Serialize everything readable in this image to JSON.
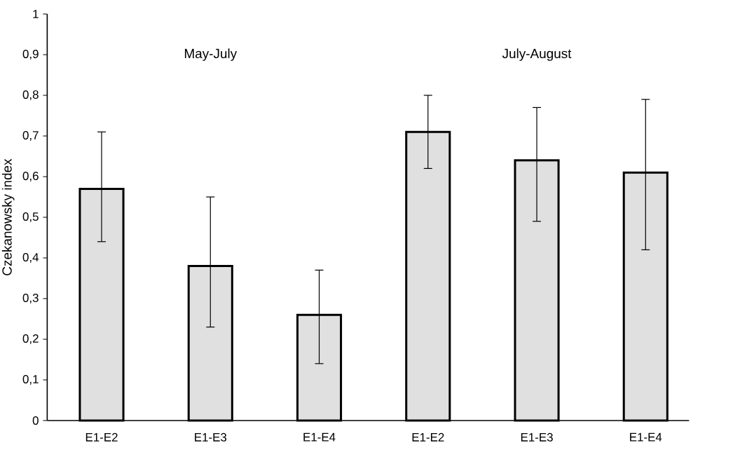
{
  "chart_data": {
    "type": "bar",
    "ylabel": "Czekanowsky index",
    "categories": [
      "E1-E2",
      "E1-E3",
      "E1-E4",
      "E1-E2",
      "E1-E3",
      "E1-E4"
    ],
    "values": [
      0.57,
      0.38,
      0.26,
      0.71,
      0.64,
      0.61
    ],
    "errors": [
      [
        0.44,
        0.71
      ],
      [
        0.23,
        0.55
      ],
      [
        0.14,
        0.37
      ],
      [
        0.62,
        0.8
      ],
      [
        0.49,
        0.77
      ],
      [
        0.42,
        0.79
      ]
    ],
    "color": "#e0e0e0",
    "ylim": [
      0,
      1
    ],
    "yticks": [
      0,
      {
        "value": 0.1,
        "label": "0,1"
      },
      {
        "value": 0.2,
        "label": "0,2"
      },
      {
        "value": 0.3,
        "label": "0,3"
      },
      {
        "value": 0.4,
        "label": "0,4"
      },
      {
        "value": 0.5,
        "label": "0,5"
      },
      {
        "value": 0.6,
        "label": "0,6"
      },
      {
        "value": 0.7,
        "label": "0,7"
      },
      {
        "value": 0.8,
        "label": "0,8"
      },
      {
        "value": 0.9,
        "label": "0,9"
      },
      1
    ],
    "grid": false,
    "annotations": [
      "May-July",
      "July-August"
    ]
  }
}
